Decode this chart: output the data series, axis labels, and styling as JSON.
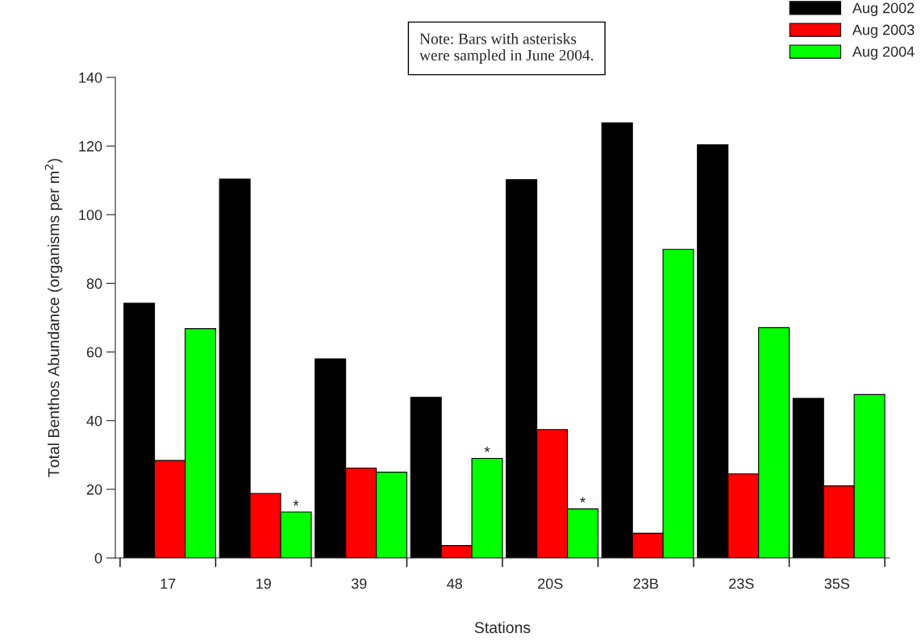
{
  "chart_data": {
    "type": "bar",
    "xlabel": "Stations",
    "ylabel": "Total Benthos Abundance (organisms per m$^{2}$)",
    "categories": [
      "17",
      "19",
      "39",
      "48",
      "20S",
      "23B",
      "23S",
      "35S"
    ],
    "series": [
      {
        "name": "Aug 2002",
        "color": "#000000",
        "values": [
          74.2,
          110.4,
          58,
          46.8,
          110.2,
          126.8,
          120.4,
          46.5
        ]
      },
      {
        "name": "Aug 2003",
        "color": "#ff0000",
        "values": [
          28.4,
          18.8,
          26.2,
          3.6,
          37.4,
          7.2,
          24.5,
          21
        ]
      },
      {
        "name": "Aug 2004",
        "color": "#00ff00",
        "values": [
          66.8,
          13.4,
          25,
          29,
          14.3,
          89.9,
          67.1,
          47.6
        ],
        "value_labels": [
          null,
          "*",
          null,
          "*",
          "*",
          null,
          null,
          null
        ]
      }
    ],
    "ylim": [
      0,
      140
    ],
    "yticks": [
      0,
      20,
      40,
      60,
      80,
      100,
      120,
      140
    ],
    "annotations": [
      "Note: Bars with asterisks\nwere sampled in June 2004."
    ],
    "legend": "top right",
    "grid": false
  }
}
